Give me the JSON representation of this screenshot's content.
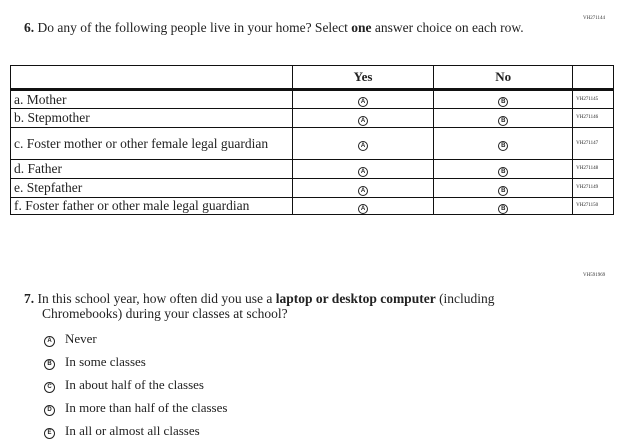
{
  "q6": {
    "code": "VH271144",
    "number": "6.",
    "text_before": "Do any of the following people live in your home? Select ",
    "text_bold": "one",
    "text_after": " answer choice on each row.",
    "headers": [
      "",
      "Yes",
      "No",
      ""
    ],
    "rows": [
      {
        "label": "a.  Mother",
        "yes": "A",
        "no": "B",
        "code": "VH271145"
      },
      {
        "label": "b.  Stepmother",
        "yes": "A",
        "no": "B",
        "code": "VH271146"
      },
      {
        "label": "c.  Foster mother or other female legal guardian",
        "yes": "A",
        "no": "B",
        "code": "VH271147"
      },
      {
        "label": "d.  Father",
        "yes": "A",
        "no": "B",
        "code": "VH271148"
      },
      {
        "label": "e.  Stepfather",
        "yes": "A",
        "no": "B",
        "code": "VH271149"
      },
      {
        "label": "f.  Foster father or other male legal guardian",
        "yes": "A",
        "no": "B",
        "code": "VH271150"
      }
    ]
  },
  "q7": {
    "code": "VH591969",
    "number": "7.",
    "text_before": "In this school year, how often did you use a ",
    "text_bold": "laptop or desktop computer",
    "text_after": " (including Chromebooks) during your classes at school?",
    "options": [
      {
        "letter": "A",
        "label": "Never"
      },
      {
        "letter": "B",
        "label": "In some classes"
      },
      {
        "letter": "C",
        "label": "In about half of the classes"
      },
      {
        "letter": "D",
        "label": "In more than half of the classes"
      },
      {
        "letter": "E",
        "label": "In all or almost all classes"
      }
    ]
  }
}
